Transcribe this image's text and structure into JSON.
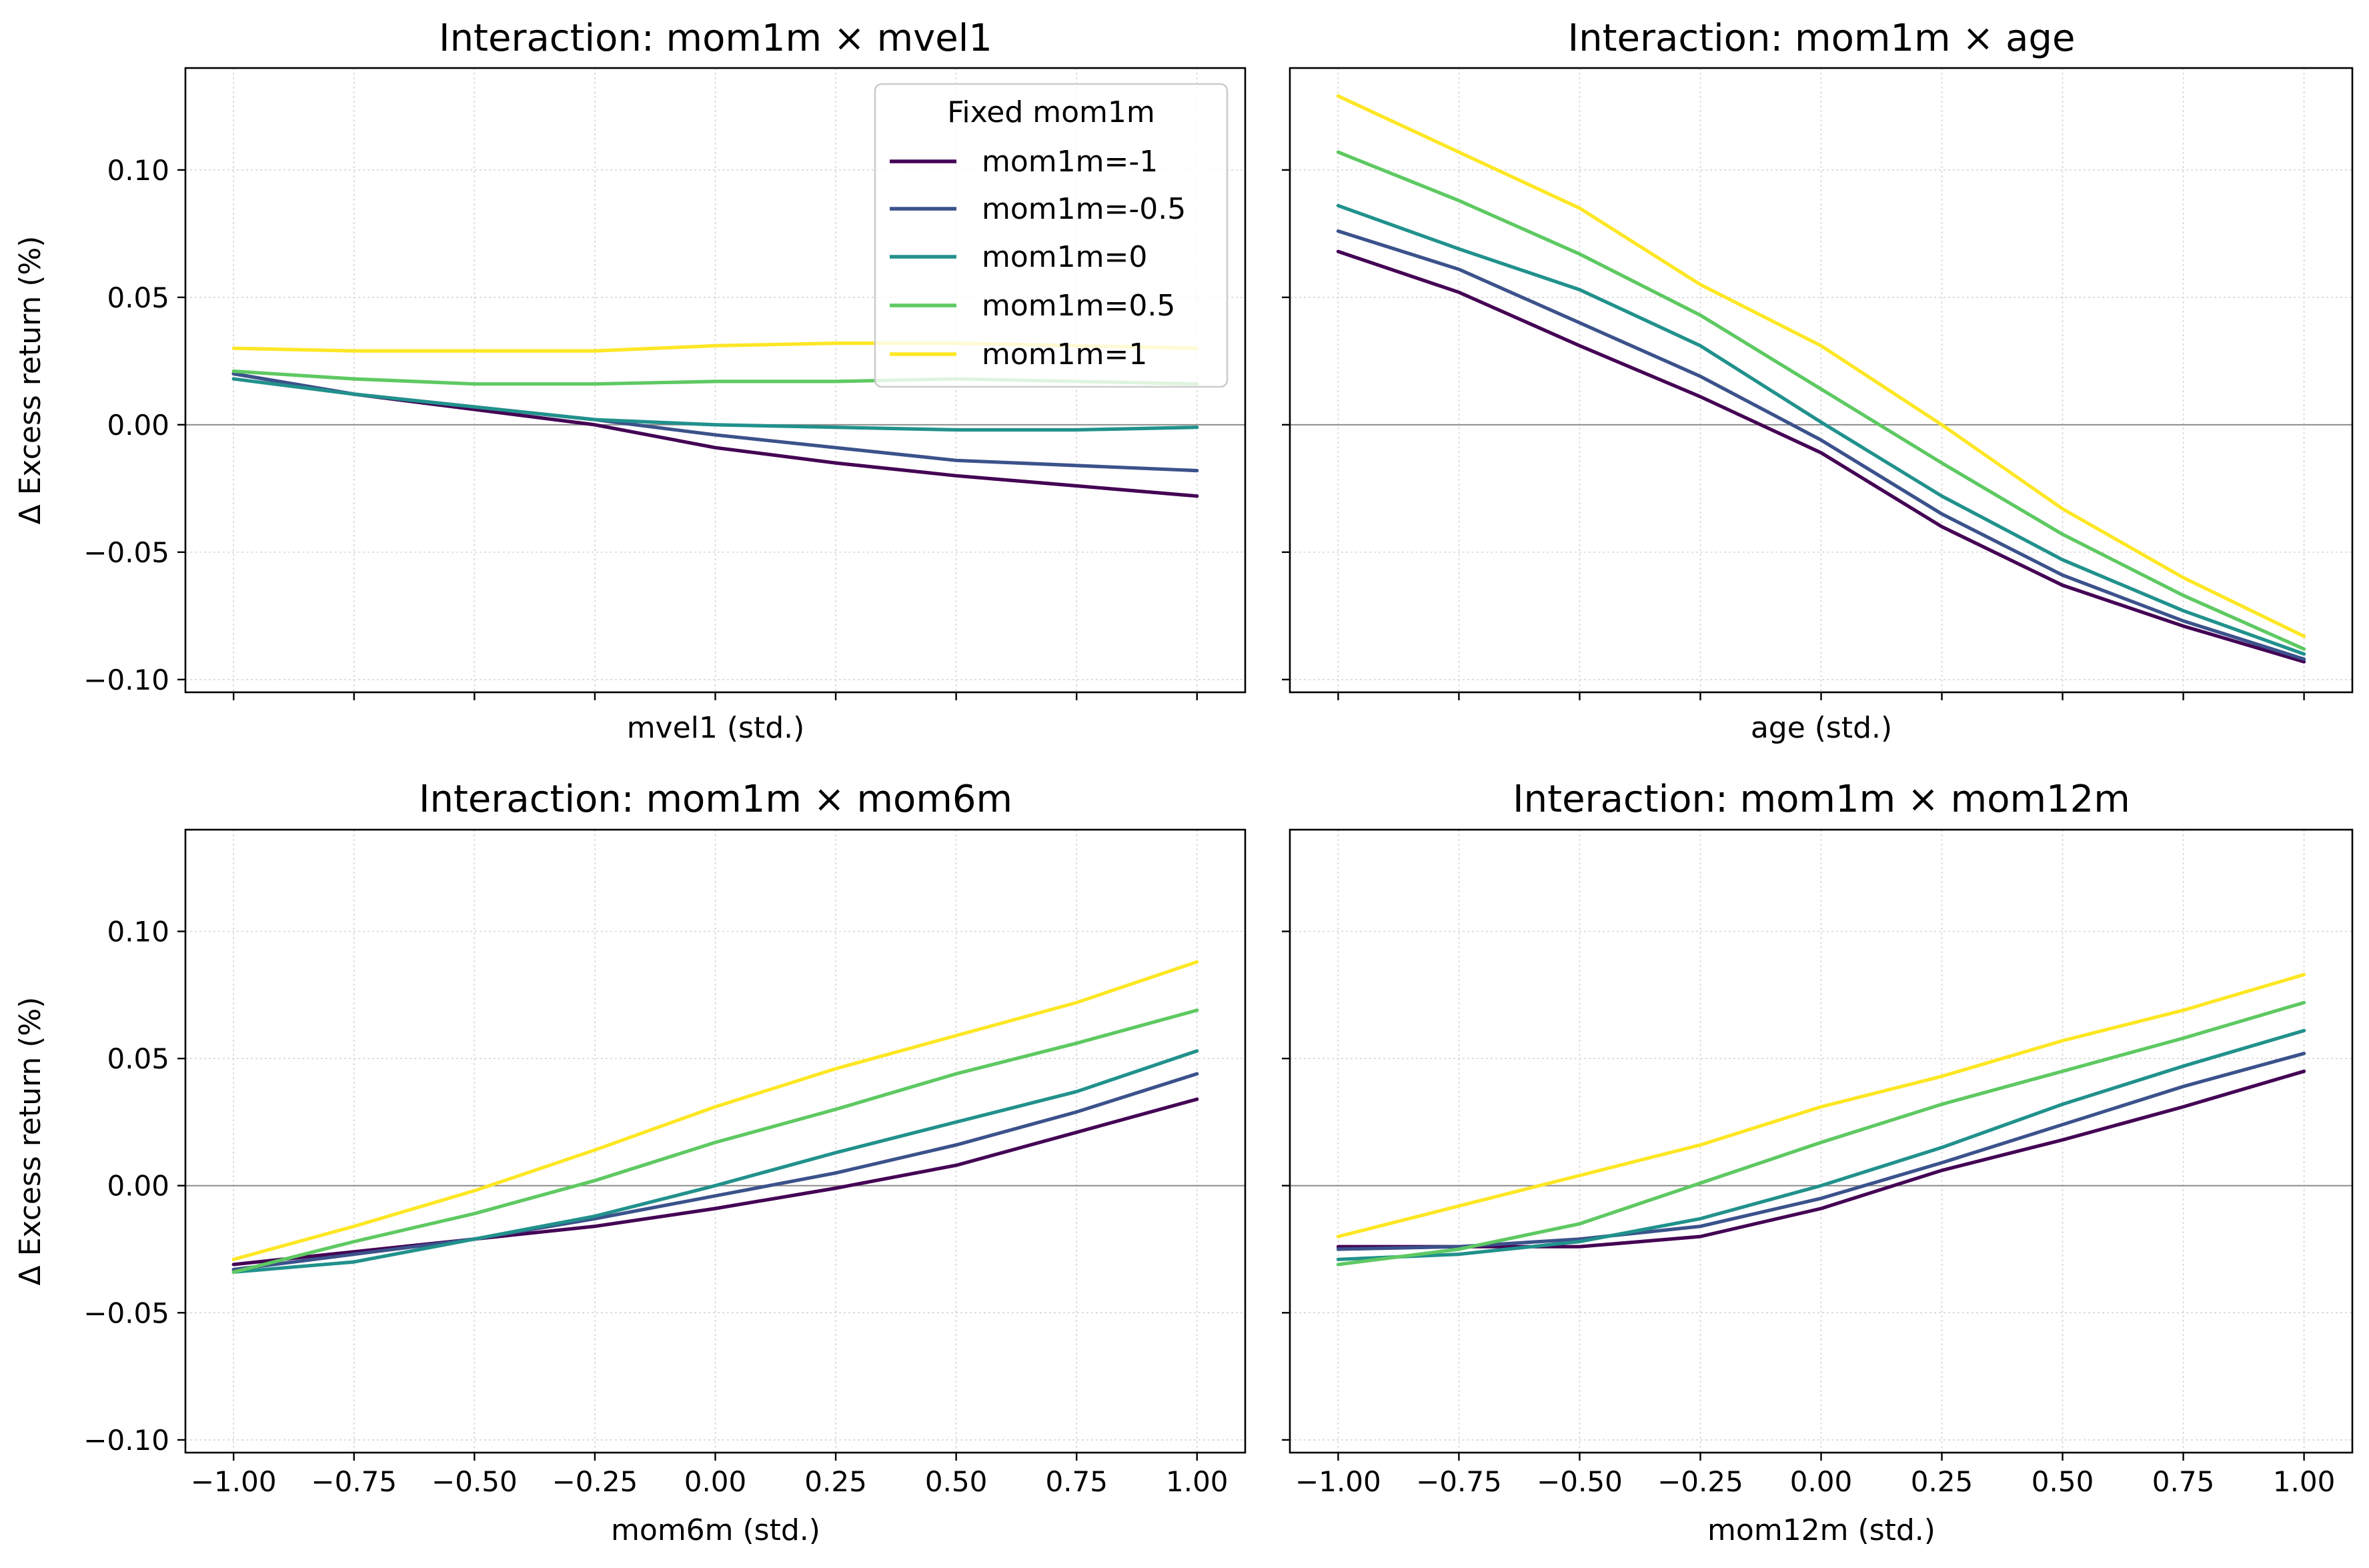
{
  "chart_data": [
    {
      "type": "line",
      "title": "Interaction: mom1m × mvel1",
      "xlabel": "mvel1 (std.)",
      "ylabel": "Δ Excess return (%)",
      "xlim": [
        -1.1,
        1.1
      ],
      "ylim": [
        -0.105,
        0.14
      ],
      "xticks": [
        -1.0,
        -0.75,
        -0.5,
        -0.25,
        0.0,
        0.25,
        0.5,
        0.75,
        1.0
      ],
      "yticks": [
        -0.1,
        -0.05,
        0.0,
        0.05,
        0.1
      ],
      "ytick_labels": [
        "−0.10",
        "−0.05",
        "0.00",
        "0.05",
        "0.10"
      ],
      "show_xtick_labels": false,
      "show_ytick_labels": true,
      "grid": true,
      "zero_line": true,
      "legend": {
        "title": "Fixed mom1m",
        "placement": "top-right"
      },
      "x": [
        -1.0,
        -0.75,
        -0.5,
        -0.25,
        0.0,
        0.25,
        0.5,
        0.75,
        1.0
      ],
      "series": [
        {
          "name": "mom1m=-1",
          "color": "#440154",
          "values": [
            0.02,
            0.012,
            0.006,
            0.0,
            -0.009,
            -0.015,
            -0.02,
            -0.024,
            -0.028
          ]
        },
        {
          "name": "mom1m=-0.5",
          "color": "#3b528b",
          "values": [
            0.02,
            0.012,
            0.007,
            0.002,
            -0.004,
            -0.009,
            -0.014,
            -0.016,
            -0.018
          ]
        },
        {
          "name": "mom1m=0",
          "color": "#21918c",
          "values": [
            0.018,
            0.012,
            0.007,
            0.002,
            0.0,
            -0.001,
            -0.002,
            -0.002,
            -0.001
          ]
        },
        {
          "name": "mom1m=0.5",
          "color": "#5ec962",
          "values": [
            0.021,
            0.018,
            0.016,
            0.016,
            0.017,
            0.017,
            0.018,
            0.017,
            0.016
          ]
        },
        {
          "name": "mom1m=1",
          "color": "#fde725",
          "values": [
            0.03,
            0.029,
            0.029,
            0.029,
            0.031,
            0.032,
            0.032,
            0.031,
            0.03
          ]
        }
      ]
    },
    {
      "type": "line",
      "title": "Interaction: mom1m × age",
      "xlabel": "age (std.)",
      "ylabel": "",
      "xlim": [
        -1.1,
        1.1
      ],
      "ylim": [
        -0.105,
        0.14
      ],
      "xticks": [
        -1.0,
        -0.75,
        -0.5,
        -0.25,
        0.0,
        0.25,
        0.5,
        0.75,
        1.0
      ],
      "yticks": [
        -0.1,
        -0.05,
        0.0,
        0.05,
        0.1
      ],
      "ytick_labels": [
        "−0.10",
        "−0.05",
        "0.00",
        "0.05",
        "0.10"
      ],
      "show_xtick_labels": false,
      "show_ytick_labels": false,
      "grid": true,
      "zero_line": true,
      "x": [
        -1.0,
        -0.75,
        -0.5,
        -0.25,
        0.0,
        0.25,
        0.5,
        0.75,
        1.0
      ],
      "series": [
        {
          "name": "mom1m=-1",
          "color": "#440154",
          "values": [
            0.068,
            0.052,
            0.031,
            0.011,
            -0.011,
            -0.04,
            -0.063,
            -0.079,
            -0.093
          ]
        },
        {
          "name": "mom1m=-0.5",
          "color": "#3b528b",
          "values": [
            0.076,
            0.061,
            0.04,
            0.019,
            -0.006,
            -0.035,
            -0.059,
            -0.077,
            -0.092
          ]
        },
        {
          "name": "mom1m=0",
          "color": "#21918c",
          "values": [
            0.086,
            0.069,
            0.053,
            0.031,
            0.001,
            -0.028,
            -0.053,
            -0.073,
            -0.09
          ]
        },
        {
          "name": "mom1m=0.5",
          "color": "#5ec962",
          "values": [
            0.107,
            0.088,
            0.067,
            0.043,
            0.014,
            -0.015,
            -0.043,
            -0.067,
            -0.088
          ]
        },
        {
          "name": "mom1m=1",
          "color": "#fde725",
          "values": [
            0.129,
            0.107,
            0.085,
            0.055,
            0.031,
            0.0,
            -0.033,
            -0.06,
            -0.083
          ]
        }
      ]
    },
    {
      "type": "line",
      "title": "Interaction: mom1m × mom6m",
      "xlabel": "mom6m (std.)",
      "ylabel": "Δ Excess return (%)",
      "xlim": [
        -1.1,
        1.1
      ],
      "ylim": [
        -0.105,
        0.14
      ],
      "xticks": [
        -1.0,
        -0.75,
        -0.5,
        -0.25,
        0.0,
        0.25,
        0.5,
        0.75,
        1.0
      ],
      "xtick_labels": [
        "−1.00",
        "−0.75",
        "−0.50",
        "−0.25",
        "0.00",
        "0.25",
        "0.50",
        "0.75",
        "1.00"
      ],
      "yticks": [
        -0.1,
        -0.05,
        0.0,
        0.05,
        0.1
      ],
      "ytick_labels": [
        "−0.10",
        "−0.05",
        "0.00",
        "0.05",
        "0.10"
      ],
      "show_xtick_labels": true,
      "show_ytick_labels": true,
      "grid": true,
      "zero_line": true,
      "x": [
        -1.0,
        -0.75,
        -0.5,
        -0.25,
        0.0,
        0.25,
        0.5,
        0.75,
        1.0
      ],
      "series": [
        {
          "name": "mom1m=-1",
          "color": "#440154",
          "values": [
            -0.031,
            -0.026,
            -0.021,
            -0.016,
            -0.009,
            -0.001,
            0.008,
            0.021,
            0.034
          ]
        },
        {
          "name": "mom1m=-0.5",
          "color": "#3b528b",
          "values": [
            -0.033,
            -0.027,
            -0.021,
            -0.013,
            -0.004,
            0.005,
            0.016,
            0.029,
            0.044
          ]
        },
        {
          "name": "mom1m=0",
          "color": "#21918c",
          "values": [
            -0.034,
            -0.03,
            -0.021,
            -0.012,
            0.0,
            0.013,
            0.025,
            0.037,
            0.053
          ]
        },
        {
          "name": "mom1m=0.5",
          "color": "#5ec962",
          "values": [
            -0.034,
            -0.022,
            -0.011,
            0.002,
            0.017,
            0.03,
            0.044,
            0.056,
            0.069
          ]
        },
        {
          "name": "mom1m=1",
          "color": "#fde725",
          "values": [
            -0.029,
            -0.016,
            -0.002,
            0.014,
            0.031,
            0.046,
            0.059,
            0.072,
            0.088
          ]
        }
      ]
    },
    {
      "type": "line",
      "title": "Interaction: mom1m × mom12m",
      "xlabel": "mom12m (std.)",
      "ylabel": "",
      "xlim": [
        -1.1,
        1.1
      ],
      "ylim": [
        -0.105,
        0.14
      ],
      "xticks": [
        -1.0,
        -0.75,
        -0.5,
        -0.25,
        0.0,
        0.25,
        0.5,
        0.75,
        1.0
      ],
      "xtick_labels": [
        "−1.00",
        "−0.75",
        "−0.50",
        "−0.25",
        "0.00",
        "0.25",
        "0.50",
        "0.75",
        "1.00"
      ],
      "yticks": [
        -0.1,
        -0.05,
        0.0,
        0.05,
        0.1
      ],
      "ytick_labels": [
        "−0.10",
        "−0.05",
        "0.00",
        "0.05",
        "0.10"
      ],
      "show_xtick_labels": true,
      "show_ytick_labels": false,
      "grid": true,
      "zero_line": true,
      "x": [
        -1.0,
        -0.75,
        -0.5,
        -0.25,
        0.0,
        0.25,
        0.5,
        0.75,
        1.0
      ],
      "series": [
        {
          "name": "mom1m=-1",
          "color": "#440154",
          "values": [
            -0.024,
            -0.024,
            -0.024,
            -0.02,
            -0.009,
            0.006,
            0.018,
            0.031,
            0.045
          ]
        },
        {
          "name": "mom1m=-0.5",
          "color": "#3b528b",
          "values": [
            -0.025,
            -0.024,
            -0.021,
            -0.016,
            -0.005,
            0.009,
            0.024,
            0.039,
            0.052
          ]
        },
        {
          "name": "mom1m=0",
          "color": "#21918c",
          "values": [
            -0.029,
            -0.027,
            -0.022,
            -0.013,
            0.0,
            0.015,
            0.032,
            0.047,
            0.061
          ]
        },
        {
          "name": "mom1m=0.5",
          "color": "#5ec962",
          "values": [
            -0.031,
            -0.025,
            -0.015,
            0.001,
            0.017,
            0.032,
            0.045,
            0.058,
            0.072
          ]
        },
        {
          "name": "mom1m=1",
          "color": "#fde725",
          "values": [
            -0.02,
            -0.008,
            0.004,
            0.016,
            0.031,
            0.043,
            0.057,
            0.069,
            0.083
          ]
        }
      ]
    }
  ]
}
